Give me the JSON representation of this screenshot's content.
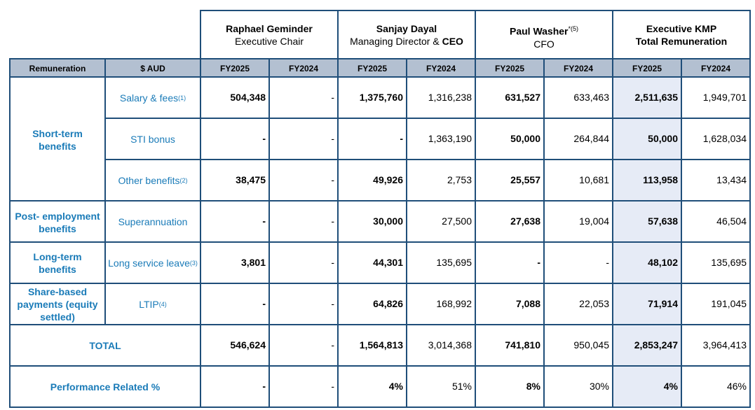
{
  "executives": [
    {
      "name": "Raphael Geminder",
      "sup": "",
      "role": "Executive Chair",
      "role_bold": ""
    },
    {
      "name": "Sanjay Dayal",
      "sup": "",
      "role": "Managing Director & ",
      "role_bold": "CEO"
    },
    {
      "name": "Paul Washer",
      "sup": "*(5)",
      "role": "CFO",
      "role_bold": ""
    },
    {
      "name": "Executive KMP",
      "sup": "",
      "role": "Total Remuneration",
      "role_bold": ""
    }
  ],
  "column_headers": {
    "remuneration": "Remuneration",
    "currency": "$ AUD",
    "years": [
      "FY2025",
      "FY2024",
      "FY2025",
      "FY2024",
      "FY2025",
      "FY2024",
      "FY2025",
      "FY2024"
    ]
  },
  "categories": [
    "Short-term benefits",
    "Post- employment benefits",
    "Long-term benefits",
    "Share-based payments (equity settled)"
  ],
  "rows": [
    {
      "label": "Salary & fees",
      "sup": "(1)",
      "values": [
        "504,348",
        "-",
        "1,375,760",
        "1,316,238",
        "631,527",
        "633,463",
        "2,511,635",
        "1,949,701"
      ]
    },
    {
      "label": "STI bonus",
      "sup": "",
      "values": [
        "-",
        "-",
        "-",
        "1,363,190",
        "50,000",
        "264,844",
        "50,000",
        "1,628,034"
      ]
    },
    {
      "label": "Other benefits",
      "sup": "(2)",
      "values": [
        "38,475",
        "-",
        "49,926",
        "2,753",
        "25,557",
        "10,681",
        "113,958",
        "13,434"
      ]
    },
    {
      "label": "Superannuation",
      "sup": "",
      "values": [
        "-",
        "-",
        "30,000",
        "27,500",
        "27,638",
        "19,004",
        "57,638",
        "46,504"
      ]
    },
    {
      "label": "Long service leave",
      "sup": "(3)",
      "values": [
        "3,801",
        "-",
        "44,301",
        "135,695",
        "-",
        "-",
        "48,102",
        "135,695"
      ]
    },
    {
      "label": "LTIP",
      "sup": "(4)",
      "values": [
        "-",
        "-",
        "64,826",
        "168,992",
        "7,088",
        "22,053",
        "71,914",
        "191,045"
      ]
    }
  ],
  "total": {
    "label": "TOTAL",
    "values": [
      "546,624",
      "-",
      "1,564,813",
      "3,014,368",
      "741,810",
      "950,045",
      "2,853,247",
      "3,964,413"
    ]
  },
  "performance": {
    "label": "Performance Related %",
    "values": [
      "-",
      "-",
      "4%",
      "51%",
      "8%",
      "30%",
      "4%",
      "46%"
    ]
  },
  "colors": {
    "border": "#1f4e79",
    "header_fill": "#b3c0d1",
    "highlight_fill": "#e6ebf6",
    "label_text": "#1a7bb8"
  }
}
